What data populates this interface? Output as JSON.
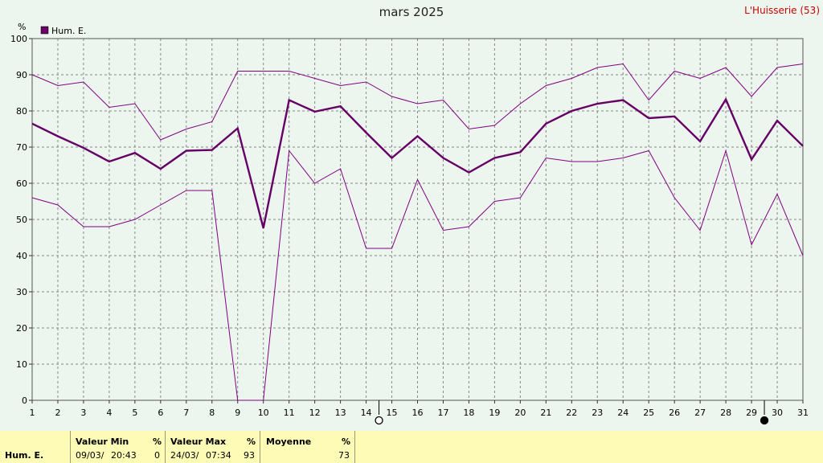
{
  "header": {
    "title": "mars 2025",
    "station": "L'Huisserie (53)"
  },
  "chart_data": {
    "type": "line",
    "title": "mars 2025",
    "yunit": "%",
    "ylim": [
      0,
      100
    ],
    "yticks": [
      0,
      10,
      20,
      30,
      40,
      50,
      60,
      70,
      80,
      90,
      100
    ],
    "x": [
      1,
      2,
      3,
      4,
      5,
      6,
      7,
      8,
      9,
      10,
      11,
      12,
      13,
      14,
      15,
      16,
      17,
      18,
      19,
      20,
      21,
      22,
      23,
      24,
      25,
      26,
      27,
      28,
      29,
      30,
      31
    ],
    "grid": true,
    "legend": "top-left",
    "moon_markers": [
      {
        "phase": "new-moon",
        "day": 14.5
      },
      {
        "phase": "full-moon",
        "day": 29.5
      }
    ],
    "series": [
      {
        "name": "Hum. E.",
        "role": "mean",
        "color": "#660066",
        "values": [
          76.5,
          73,
          69.8,
          66,
          68.4,
          64,
          69,
          69.2,
          75.2,
          47.6,
          83,
          79.8,
          81.3,
          74,
          67,
          73,
          67,
          63,
          67,
          68.6,
          76.5,
          80,
          82,
          83,
          78,
          78.5,
          71.6,
          83.2,
          66.6,
          77.3,
          70.3
        ]
      },
      {
        "role": "max",
        "color": "#800080",
        "values": [
          90,
          87,
          88,
          81,
          82,
          72,
          75,
          77,
          91,
          91,
          91,
          89,
          87,
          88,
          84,
          82,
          83,
          75,
          76,
          82,
          87,
          89,
          92,
          93,
          83,
          91,
          89,
          92,
          84,
          92,
          93
        ]
      },
      {
        "role": "min",
        "color": "#800080",
        "values": [
          56,
          54,
          48,
          48,
          50,
          54,
          58,
          58,
          0,
          0,
          69,
          60,
          64,
          42,
          42,
          61,
          47,
          48,
          55,
          56,
          67,
          66,
          66,
          67,
          69,
          56,
          47,
          69,
          43,
          57,
          40
        ]
      }
    ]
  },
  "stats": {
    "row_label": "Hum. E.",
    "unit": "%",
    "min": {
      "header": "Valeur Min",
      "date": "09/03/",
      "time": "20:43",
      "value": "0"
    },
    "max": {
      "header": "Valeur Max",
      "date": "24/03/",
      "time": "07:34",
      "value": "93"
    },
    "avg": {
      "header": "Moyenne",
      "value": "73"
    }
  },
  "colors": {
    "mean_line": "#660066",
    "minmax_line": "#800080",
    "station": "#cc0000",
    "stats_bg": "#fdfbb6",
    "plot_bg": "#ecf5ee"
  }
}
